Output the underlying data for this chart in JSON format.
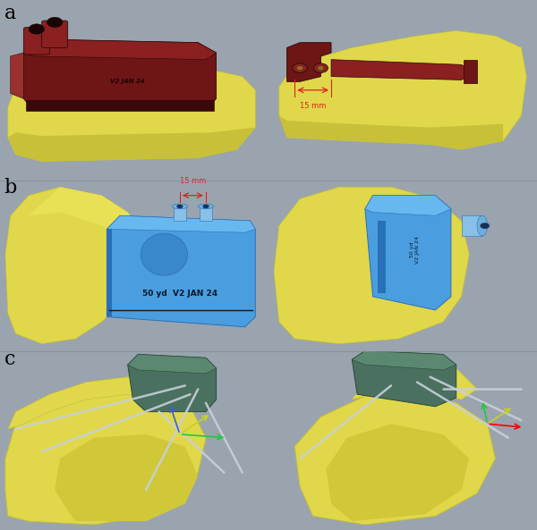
{
  "background_color": "#9aa4ae",
  "label_a": "a",
  "label_b": "b",
  "label_c": "c",
  "label_fontsize": 16,
  "bone_yellow": "#e0d84a",
  "bone_yellow_shadow": "#c8c038",
  "guide_darkred": "#6e1515",
  "guide_darkred_mid": "#8a2020",
  "guide_darkred_light": "#9a3030",
  "guide_blue": "#4a9ee0",
  "guide_blue_light": "#68b8f0",
  "guide_blue_dark": "#2870b8",
  "guide_teal": "#4a7060",
  "guide_teal_light": "#5a8870",
  "guide_teal_dark": "#2a4838",
  "red_annotation": "#e02020",
  "figsize": [
    6.0,
    5.93
  ],
  "dpi": 100
}
